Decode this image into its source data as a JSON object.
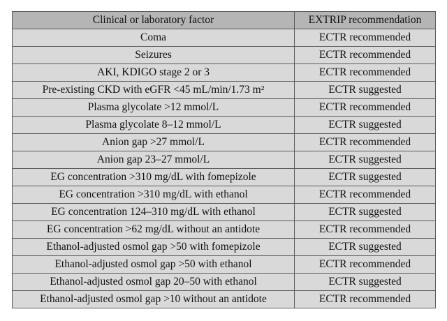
{
  "table": {
    "headers": [
      "Clinical or laboratory factor",
      "EXTRIP recommendation"
    ],
    "rows": [
      {
        "factor": "Coma",
        "recommendation": "ECTR recommended"
      },
      {
        "factor": "Seizures",
        "recommendation": "ECTR recommended"
      },
      {
        "factor": "AKI, KDIGO stage 2 or 3",
        "recommendation": "ECTR recommended"
      },
      {
        "factor": "Pre-existing CKD with eGFR <45 mL/min/1.73 m²",
        "recommendation": "ECTR suggested"
      },
      {
        "factor": "Plasma glycolate >12 mmol/L",
        "recommendation": "ECTR recommended"
      },
      {
        "factor": "Plasma glycolate 8–12 mmol/L",
        "recommendation": "ECTR suggested"
      },
      {
        "factor": "Anion gap >27 mmol/L",
        "recommendation": "ECTR recommended"
      },
      {
        "factor": "Anion gap 23–27 mmol/L",
        "recommendation": "ECTR suggested"
      },
      {
        "factor": "EG concentration >310 mg/dL with fomepizole",
        "recommendation": "ECTR suggested"
      },
      {
        "factor": "EG concentration >310 mg/dL with ethanol",
        "recommendation": "ECTR recommended"
      },
      {
        "factor": "EG concentration 124–310 mg/dL with ethanol",
        "recommendation": "ECTR suggested"
      },
      {
        "factor": "EG concentration >62 mg/dL without an antidote",
        "recommendation": "ECTR recommended"
      },
      {
        "factor": "Ethanol-adjusted osmol gap >50 with fomepizole",
        "recommendation": "ECTR suggested"
      },
      {
        "factor": "Ethanol-adjusted osmol gap >50 with ethanol",
        "recommendation": "ECTR recommended"
      },
      {
        "factor": "Ethanol-adjusted osmol gap 20–50 with ethanol",
        "recommendation": "ECTR suggested"
      },
      {
        "factor": "Ethanol-adjusted osmol gap >10 without an antidote",
        "recommendation": "ECTR recommended"
      }
    ]
  }
}
